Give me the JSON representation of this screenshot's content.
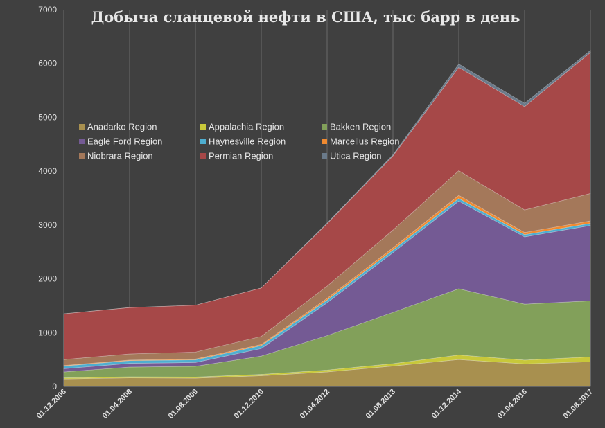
{
  "chart_data": {
    "type": "area",
    "stacked": true,
    "title": "Добыча сланцевой нефти в США, тыс барр в день",
    "xlabel": "",
    "ylabel": "",
    "ylim": [
      0,
      7000
    ],
    "yticks": [
      0,
      1000,
      2000,
      3000,
      4000,
      5000,
      6000,
      7000
    ],
    "xticks": [
      "01.12.2006",
      "01.04.2008",
      "01.08.2009",
      "01.12.2010",
      "01.04.2012",
      "01.08.2013",
      "01.12.2014",
      "01.04.2016",
      "01.08.2017"
    ],
    "grid": "vertical",
    "legend_position": "top-left",
    "x": [
      "01.12.2006",
      "01.04.2008",
      "01.08.2009",
      "01.12.2010",
      "01.04.2012",
      "01.08.2013",
      "01.12.2014",
      "01.04.2016",
      "01.08.2017"
    ],
    "series": [
      {
        "name": "Anadarko Region",
        "color": "#a8904f",
        "values": [
          140,
          160,
          155,
          200,
          270,
          380,
          500,
          420,
          460
        ]
      },
      {
        "name": "Appalachia Region",
        "color": "#c8c83a",
        "values": [
          20,
          20,
          20,
          25,
          35,
          45,
          85,
          70,
          90
        ]
      },
      {
        "name": "Bakken Region",
        "color": "#82a05a",
        "values": [
          110,
          180,
          200,
          340,
          640,
          950,
          1230,
          1040,
          1040
        ]
      },
      {
        "name": "Eagle Ford Region",
        "color": "#745a94",
        "values": [
          60,
          70,
          70,
          140,
          610,
          1110,
          1630,
          1250,
          1400
        ]
      },
      {
        "name": "Haynesville Region",
        "color": "#4eaed0",
        "values": [
          50,
          50,
          50,
          55,
          50,
          50,
          50,
          40,
          40
        ]
      },
      {
        "name": "Marcellus Region",
        "color": "#f08a30",
        "values": [
          10,
          10,
          15,
          20,
          30,
          40,
          55,
          40,
          45
        ]
      },
      {
        "name": "Niobrara Region",
        "color": "#a4785a",
        "values": [
          110,
          115,
          130,
          150,
          230,
          330,
          460,
          420,
          510
        ]
      },
      {
        "name": "Permian Region",
        "color": "#a64848",
        "values": [
          850,
          860,
          870,
          900,
          1160,
          1380,
          1920,
          1920,
          2620
        ]
      },
      {
        "name": "Utica Region",
        "color": "#6a7a8a",
        "values": [
          0,
          0,
          0,
          0,
          10,
          20,
          60,
          60,
          40
        ]
      }
    ]
  }
}
